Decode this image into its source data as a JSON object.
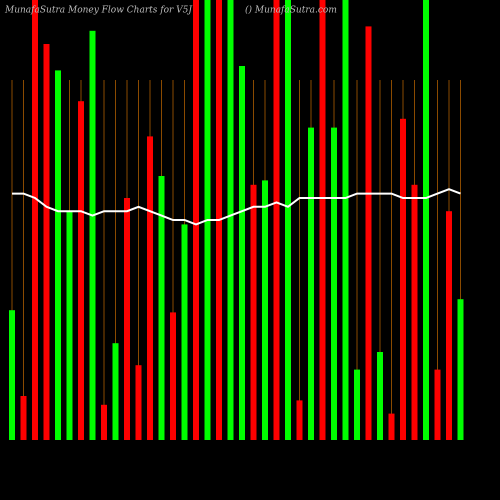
{
  "chart_data": {
    "type": "bar",
    "title": "MunafaSutra  Money Flow  Charts for V5J",
    "subtitle": "() MunafaSutra.com",
    "values": [
      29.5,
      10,
      100,
      90,
      84,
      52,
      77,
      93,
      8,
      22,
      55,
      17,
      69,
      60,
      29,
      49,
      100,
      100,
      100,
      100,
      85,
      58,
      59,
      100,
      100,
      9,
      71,
      100,
      71,
      100,
      16,
      94,
      20,
      6,
      73,
      58,
      100,
      16,
      52,
      32
    ],
    "colors": [
      "#00ff00",
      "#ff0000",
      "#ff0000",
      "#ff0000",
      "#00ff00",
      "#00ff00",
      "#ff0000",
      "#00ff00",
      "#ff0000",
      "#00ff00",
      "#ff0000",
      "#ff0000",
      "#ff0000",
      "#00ff00",
      "#ff0000",
      "#00ff00",
      "#ff0000",
      "#00ff00",
      "#ff0000",
      "#00ff00",
      "#00ff00",
      "#ff0000",
      "#00ff00",
      "#ff0000",
      "#00ff00",
      "#ff0000",
      "#00ff00",
      "#ff0000",
      "#00ff00",
      "#00ff00",
      "#00ff00",
      "#ff0000",
      "#00ff00",
      "#ff0000",
      "#ff0000",
      "#ff0000",
      "#00ff00",
      "#ff0000",
      "#ff0000",
      "#00ff00"
    ],
    "line": {
      "color": "#ffffff",
      "values": [
        56,
        56,
        55,
        53,
        52,
        52,
        52,
        51,
        52,
        52,
        52,
        53,
        52,
        51,
        50,
        50,
        49,
        50,
        50,
        51,
        52,
        53,
        53,
        54,
        53,
        55,
        55,
        55,
        55,
        55,
        56,
        56,
        56,
        56,
        55,
        55,
        55,
        56,
        57,
        56
      ]
    },
    "ylim": [
      0,
      100
    ]
  }
}
